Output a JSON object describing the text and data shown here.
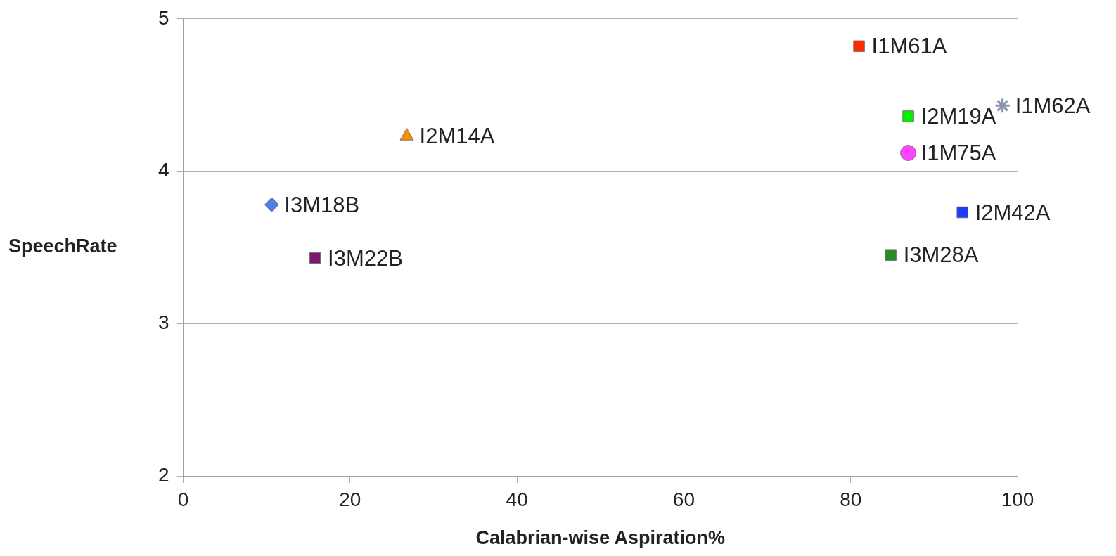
{
  "chart_data": {
    "type": "scatter",
    "xlabel": "Calabrian-wise Aspiration%",
    "ylabel": "SpeechRate",
    "xlim": [
      0,
      100
    ],
    "xticks": [
      0,
      20,
      40,
      60,
      80,
      100
    ],
    "ylim": [
      2,
      5
    ],
    "yticks": [
      2,
      3,
      4,
      5
    ],
    "grid": "y",
    "series": [
      {
        "name": "I1M61A",
        "color": "#ff2a00",
        "marker": "square",
        "x": [
          81
        ],
        "values": [
          4.82
        ]
      },
      {
        "name": "I1M62A",
        "color": "#8a94a8",
        "marker": "cross",
        "x": [
          98.2
        ],
        "values": [
          4.43
        ]
      },
      {
        "name": "I2M19A",
        "color": "#00ee00",
        "marker": "square",
        "x": [
          86.9
        ],
        "values": [
          4.36
        ]
      },
      {
        "name": "I1M75A",
        "color": "#ff44ff",
        "marker": "circle",
        "x": [
          86.9
        ],
        "values": [
          4.12
        ]
      },
      {
        "name": "I2M42A",
        "color": "#1a3cff",
        "marker": "square",
        "x": [
          93.4
        ],
        "values": [
          3.73
        ]
      },
      {
        "name": "I3M28A",
        "color": "#2a8a2a",
        "marker": "square",
        "x": [
          84.8
        ],
        "values": [
          3.45
        ]
      },
      {
        "name": "I2M14A",
        "color": "#ff8c00",
        "marker": "triangle",
        "x": [
          26.8
        ],
        "values": [
          4.23
        ]
      },
      {
        "name": "I3M18B",
        "color": "#4a7fe8",
        "marker": "diamond",
        "x": [
          10.6
        ],
        "values": [
          3.78
        ]
      },
      {
        "name": "I3M22B",
        "color": "#7b1a6e",
        "marker": "square",
        "x": [
          15.8
        ],
        "values": [
          3.43
        ]
      }
    ]
  }
}
